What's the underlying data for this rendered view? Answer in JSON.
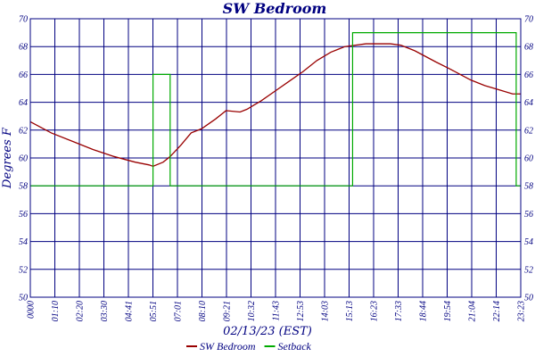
{
  "chart_data": {
    "type": "line",
    "title": "SW Bedroom",
    "xlabel": "02/13/23 (EST)",
    "ylabel": "Degrees F",
    "ylim": [
      50,
      70
    ],
    "yticks": [
      50,
      52,
      54,
      56,
      58,
      60,
      62,
      64,
      66,
      68,
      70
    ],
    "xlim_minutes": [
      0,
      1403
    ],
    "xtick_labels": [
      "0000",
      "01:10",
      "02:20",
      "03:30",
      "04:41",
      "05:51",
      "07:01",
      "08:10",
      "09:21",
      "10:32",
      "11:43",
      "12:53",
      "14:03",
      "15:13",
      "16:23",
      "17:33",
      "18:44",
      "19:54",
      "21:04",
      "22:14",
      "23:23"
    ],
    "grid": true,
    "legend_position": "bottom",
    "series": [
      {
        "name": "SW Bedroom",
        "color": "#990000",
        "x_minutes": [
          0,
          30,
          60,
          120,
          180,
          240,
          300,
          340,
          351,
          380,
          400,
          430,
          460,
          490,
          530,
          560,
          600,
          620,
          640,
          660,
          700,
          740,
          780,
          820,
          860,
          900,
          930,
          960,
          984,
          1000,
          1030,
          1060,
          1100,
          1130,
          1160,
          1200,
          1230,
          1260,
          1300,
          1340,
          1380,
          1403
        ],
        "values": [
          62.6,
          62.2,
          61.8,
          61.2,
          60.6,
          60.1,
          59.7,
          59.5,
          59.4,
          59.7,
          60.1,
          60.9,
          61.8,
          62.1,
          62.8,
          63.4,
          63.3,
          63.5,
          63.8,
          64.1,
          64.8,
          65.5,
          66.2,
          67.0,
          67.6,
          68.0,
          68.1,
          68.2,
          68.2,
          68.2,
          68.2,
          68.1,
          67.7,
          67.3,
          66.9,
          66.4,
          66.0,
          65.6,
          65.2,
          64.9,
          64.6,
          64.6
        ]
      },
      {
        "name": "Setback",
        "color": "#00aa00",
        "x_minutes": [
          0,
          351,
          351,
          400,
          400,
          922,
          922,
          1390,
          1390,
          1403
        ],
        "values": [
          58,
          58,
          66,
          66,
          58,
          58,
          69,
          69,
          58,
          58
        ]
      }
    ]
  }
}
